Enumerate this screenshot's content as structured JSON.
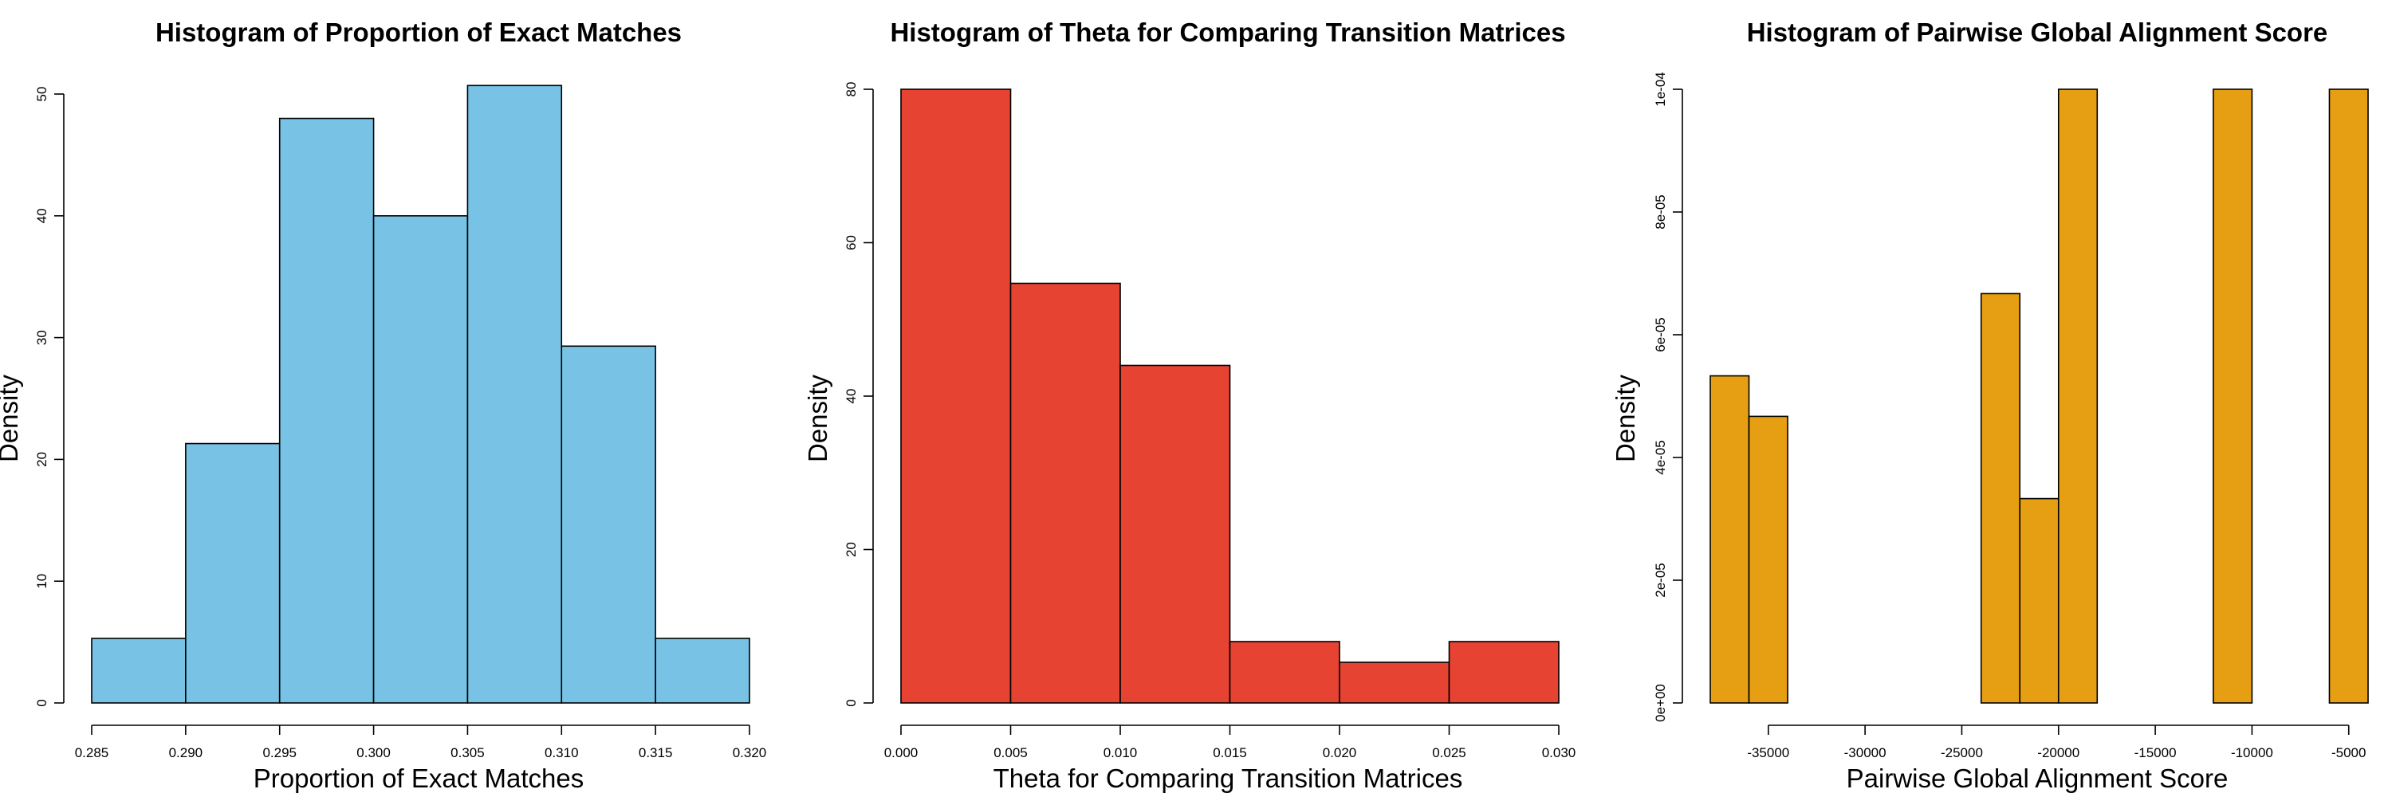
{
  "charts": [
    {
      "type": "bar",
      "title": "Histogram of Proportion of Exact Matches",
      "xlabel": "Proportion of Exact Matches",
      "ylabel": "Density",
      "fill_color": "#77C2E5",
      "xlim": [
        0.285,
        0.32
      ],
      "ylim": [
        0,
        50
      ],
      "xticks": [
        "0.285",
        "0.290",
        "0.295",
        "0.300",
        "0.305",
        "0.310",
        "0.315",
        "0.320"
      ],
      "xtick_values": [
        0.285,
        0.29,
        0.295,
        0.3,
        0.305,
        0.31,
        0.315,
        0.32
      ],
      "yticks": [
        "0",
        "10",
        "20",
        "30",
        "40",
        "50"
      ],
      "ytick_values": [
        0,
        10,
        20,
        30,
        40,
        50
      ],
      "bins": [
        {
          "x0": 0.285,
          "x1": 0.29,
          "density": 5.3
        },
        {
          "x0": 0.29,
          "x1": 0.295,
          "density": 21.3
        },
        {
          "x0": 0.295,
          "x1": 0.3,
          "density": 48.0
        },
        {
          "x0": 0.3,
          "x1": 0.305,
          "density": 40.0
        },
        {
          "x0": 0.305,
          "x1": 0.31,
          "density": 50.7
        },
        {
          "x0": 0.31,
          "x1": 0.315,
          "density": 29.3
        },
        {
          "x0": 0.315,
          "x1": 0.32,
          "density": 5.3
        }
      ]
    },
    {
      "type": "bar",
      "title": "Histogram of Theta for Comparing Transition Matrices",
      "xlabel": "Theta for Comparing Transition Matrices",
      "ylabel": "Density",
      "fill_color": "#E64333",
      "xlim": [
        0,
        0.03
      ],
      "ylim": [
        0,
        80
      ],
      "xticks": [
        "0.000",
        "0.005",
        "0.010",
        "0.015",
        "0.020",
        "0.025",
        "0.030"
      ],
      "xtick_values": [
        0,
        0.005,
        0.01,
        0.015,
        0.02,
        0.025,
        0.03
      ],
      "yticks": [
        "0",
        "20",
        "40",
        "60",
        "80"
      ],
      "ytick_values": [
        0,
        20,
        40,
        60,
        80
      ],
      "bins": [
        {
          "x0": 0.0,
          "x1": 0.005,
          "density": 80.0
        },
        {
          "x0": 0.005,
          "x1": 0.01,
          "density": 54.7
        },
        {
          "x0": 0.01,
          "x1": 0.015,
          "density": 44.0
        },
        {
          "x0": 0.015,
          "x1": 0.02,
          "density": 8.0
        },
        {
          "x0": 0.02,
          "x1": 0.025,
          "density": 5.3
        },
        {
          "x0": 0.025,
          "x1": 0.03,
          "density": 8.0
        }
      ]
    },
    {
      "type": "bar",
      "title": "Histogram of Pairwise Global Alignment Score",
      "xlabel": "Pairwise Global Alignment Score",
      "ylabel": "Density",
      "fill_color": "#E69F12",
      "xlim": [
        -38000,
        -4000
      ],
      "ylim": [
        0,
        0.0001
      ],
      "xticks": [
        "-35000",
        "-30000",
        "-25000",
        "-20000",
        "-15000",
        "-10000",
        "-5000"
      ],
      "xtick_values": [
        -35000,
        -30000,
        -25000,
        -20000,
        -15000,
        -10000,
        -5000
      ],
      "yticks": [
        "0e+00",
        "2e-05",
        "4e-05",
        "6e-05",
        "8e-05",
        "1e-04"
      ],
      "ytick_values": [
        0,
        2e-05,
        4e-05,
        6e-05,
        8e-05,
        0.0001
      ],
      "bins": [
        {
          "x0": -38000,
          "x1": -36000,
          "density": 5.33e-05
        },
        {
          "x0": -36000,
          "x1": -34000,
          "density": 4.67e-05
        },
        {
          "x0": -34000,
          "x1": -32000,
          "density": 0
        },
        {
          "x0": -32000,
          "x1": -30000,
          "density": 0
        },
        {
          "x0": -30000,
          "x1": -28000,
          "density": 0
        },
        {
          "x0": -28000,
          "x1": -26000,
          "density": 0
        },
        {
          "x0": -26000,
          "x1": -24000,
          "density": 0
        },
        {
          "x0": -24000,
          "x1": -22000,
          "density": 6.67e-05
        },
        {
          "x0": -22000,
          "x1": -20000,
          "density": 3.33e-05
        },
        {
          "x0": -20000,
          "x1": -18000,
          "density": 0.0001
        },
        {
          "x0": -18000,
          "x1": -16000,
          "density": 0
        },
        {
          "x0": -16000,
          "x1": -14000,
          "density": 0
        },
        {
          "x0": -14000,
          "x1": -12000,
          "density": 0
        },
        {
          "x0": -12000,
          "x1": -10000,
          "density": 0.0001
        },
        {
          "x0": -10000,
          "x1": -8000,
          "density": 0
        },
        {
          "x0": -8000,
          "x1": -6000,
          "density": 0
        },
        {
          "x0": -6000,
          "x1": -4000,
          "density": 0.0001
        }
      ]
    }
  ]
}
